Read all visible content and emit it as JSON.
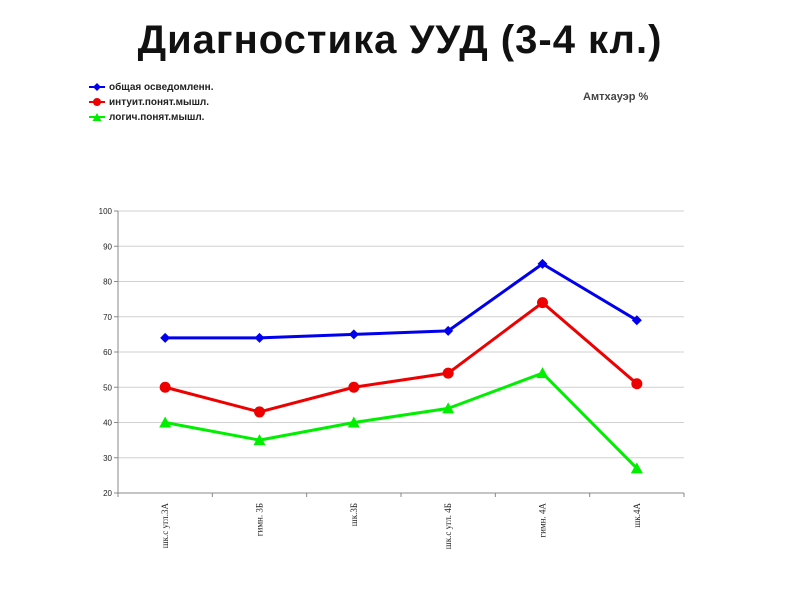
{
  "slide_title": "Диагностика УУД (3-4 кл.)",
  "chart_data": {
    "type": "line",
    "title": "Амтхауэр %",
    "xlabel": "",
    "ylabel": "",
    "categories": [
      "шк.с угл.3А",
      "гимн. 3Б",
      "шк.3Б",
      "шк.с угл. 4Б",
      "гимн. 4А",
      "шк.4А"
    ],
    "ylim": [
      20,
      100
    ],
    "yticks": [
      20,
      30,
      40,
      50,
      60,
      70,
      80,
      90,
      100
    ],
    "grid": true,
    "legend_position": "top-left",
    "series": [
      {
        "name": "общая осведомленн.",
        "color": "#0000ee",
        "marker": "diamond",
        "values": [
          64,
          64,
          65,
          66,
          85,
          69
        ]
      },
      {
        "name": "интуит.понят.мышл.",
        "color": "#ee0000",
        "marker": "circle",
        "values": [
          50,
          43,
          50,
          54,
          74,
          51
        ]
      },
      {
        "name": "логич.понят.мышл.",
        "color": "#00ee00",
        "marker": "triangle",
        "values": [
          40,
          35,
          40,
          44,
          54,
          27
        ]
      }
    ]
  }
}
